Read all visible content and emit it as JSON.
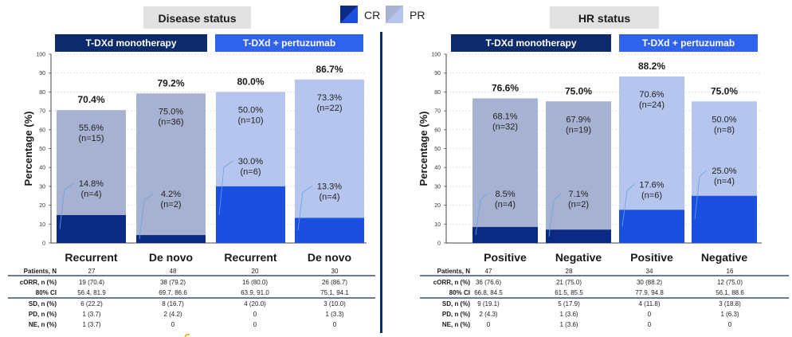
{
  "legend": {
    "items": [
      {
        "label": "CR",
        "color": "#1a4fe0",
        "color_dark": "#0a2a84"
      },
      {
        "label": "PR",
        "color": "#b6c5ee",
        "color_dark": "#a7b2d2"
      }
    ]
  },
  "colors": {
    "navy": "#0d2a6b",
    "monotherapy_header": "#0d2a6b",
    "combo_header": "#2f63ec",
    "panel_title_bg": "#e1e1e1",
    "grid": "#d0d0d0"
  },
  "chart_data": [
    {
      "type": "bar",
      "stacked": true,
      "title": "Disease status",
      "ylabel": "Percentage (%)",
      "ylim": [
        0,
        100
      ],
      "yticks": [
        0,
        10,
        20,
        30,
        40,
        50,
        60,
        70,
        80,
        90,
        100
      ],
      "group_headers": [
        "T-DXd monotherapy",
        "T-DXd + pertuzumab"
      ],
      "categories": [
        "Recurrent",
        "De novo",
        "Recurrent",
        "De novo"
      ],
      "bar_groups": [
        0,
        0,
        1,
        1
      ],
      "totals": [
        "70.4%",
        "79.2%",
        "80.0%",
        "86.7%"
      ],
      "series": [
        {
          "name": "CR",
          "values": [
            14.8,
            4.2,
            30.0,
            13.3
          ],
          "labels": [
            [
              "14.8%",
              "(n=4)"
            ],
            [
              "4.2%",
              "(n=2)"
            ],
            [
              "30.0%",
              "(n=6)"
            ],
            [
              "13.3%",
              "(n=4)"
            ]
          ]
        },
        {
          "name": "PR",
          "values": [
            55.6,
            75.0,
            50.0,
            73.3
          ],
          "labels": [
            [
              "55.6%",
              "(n=15)"
            ],
            [
              "75.0%",
              "(n=36)"
            ],
            [
              "50.0%",
              "(n=10)"
            ],
            [
              "73.3%",
              "(n=22)"
            ]
          ]
        }
      ],
      "table": {
        "rows": [
          {
            "label": "Patients, N",
            "values": [
              "27",
              "48",
              "20",
              "30"
            ]
          },
          {
            "label": "cORR, n (%)",
            "values": [
              "19 (70.4)",
              "38 (79.2)",
              "16 (80.0)",
              "26 (86.7)"
            ]
          },
          {
            "label": "80% CI",
            "values": [
              "56.4, 81.9",
              "69.7, 86.6",
              "63.9, 91.0",
              "75.1, 94.1"
            ]
          },
          {
            "label": "SD, n (%)",
            "values": [
              "6 (22.2)",
              "8 (16.7)",
              "4 (20.0)",
              "3 (10.0)"
            ]
          },
          {
            "label": "PD, n (%)",
            "values": [
              "1 (3.7)",
              "2 (4.2)",
              "0",
              "1 (3.3)"
            ]
          },
          {
            "label": "NE, n (%)",
            "values": [
              "1 (3.7)",
              "0",
              "0",
              "0"
            ]
          }
        ]
      }
    },
    {
      "type": "bar",
      "stacked": true,
      "title": "HR status",
      "ylabel": "Percentage (%)",
      "ylim": [
        0,
        100
      ],
      "yticks": [
        0,
        10,
        20,
        30,
        40,
        50,
        60,
        70,
        80,
        90,
        100
      ],
      "group_headers": [
        "T-DXd monotherapy",
        "T-DXd + pertuzumab"
      ],
      "categories": [
        "Positive",
        "Negative",
        "Positive",
        "Negative"
      ],
      "bar_groups": [
        0,
        0,
        1,
        1
      ],
      "totals": [
        "76.6%",
        "75.0%",
        "88.2%",
        "75.0%"
      ],
      "series": [
        {
          "name": "CR",
          "values": [
            8.5,
            7.1,
            17.6,
            25.0
          ],
          "labels": [
            [
              "8.5%",
              "(n=4)"
            ],
            [
              "7.1%",
              "(n=2)"
            ],
            [
              "17.6%",
              "(n=6)"
            ],
            [
              "25.0%",
              "(n=4)"
            ]
          ]
        },
        {
          "name": "PR",
          "values": [
            68.1,
            67.9,
            70.6,
            50.0
          ],
          "labels": [
            [
              "68.1%",
              "(n=32)"
            ],
            [
              "67.9%",
              "(n=19)"
            ],
            [
              "70.6%",
              "(n=24)"
            ],
            [
              "50.0%",
              "(n=8)"
            ]
          ]
        }
      ],
      "table": {
        "rows": [
          {
            "label": "Patients, N",
            "values": [
              "47",
              "28",
              "34",
              "16"
            ]
          },
          {
            "label": "cORR, n (%)",
            "values": [
              "36 (76.6)",
              "21 (75.0)",
              "30 (88.2)",
              "12 (75.0)"
            ]
          },
          {
            "label": "80% CI",
            "values": [
              "66.8, 84.5",
              "61.5, 85.5",
              "77.9, 94.8",
              "56.1, 88.6"
            ]
          },
          {
            "label": "SD, n (%)",
            "values": [
              "9 (19.1)",
              "5 (17.9)",
              "4 (11.8)",
              "3 (18.8)"
            ]
          },
          {
            "label": "PD, n (%)",
            "values": [
              "2 (4.3)",
              "1 (3.6)",
              "0",
              "1 (6.3)"
            ]
          },
          {
            "label": "NE, n (%)",
            "values": [
              "0",
              "1 (3.6)",
              "0",
              "0"
            ]
          }
        ]
      }
    }
  ]
}
